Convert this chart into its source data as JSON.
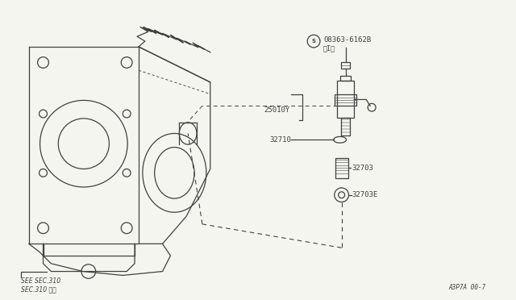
{
  "bg_color": "#f5f5f0",
  "line_color": "#404040",
  "fig_width": 6.4,
  "fig_height": 3.72,
  "footer_text": "A3P7A 00-7",
  "see_sec_line1": "SEE SEC.310",
  "see_sec_line2": "SEC.310 参照"
}
